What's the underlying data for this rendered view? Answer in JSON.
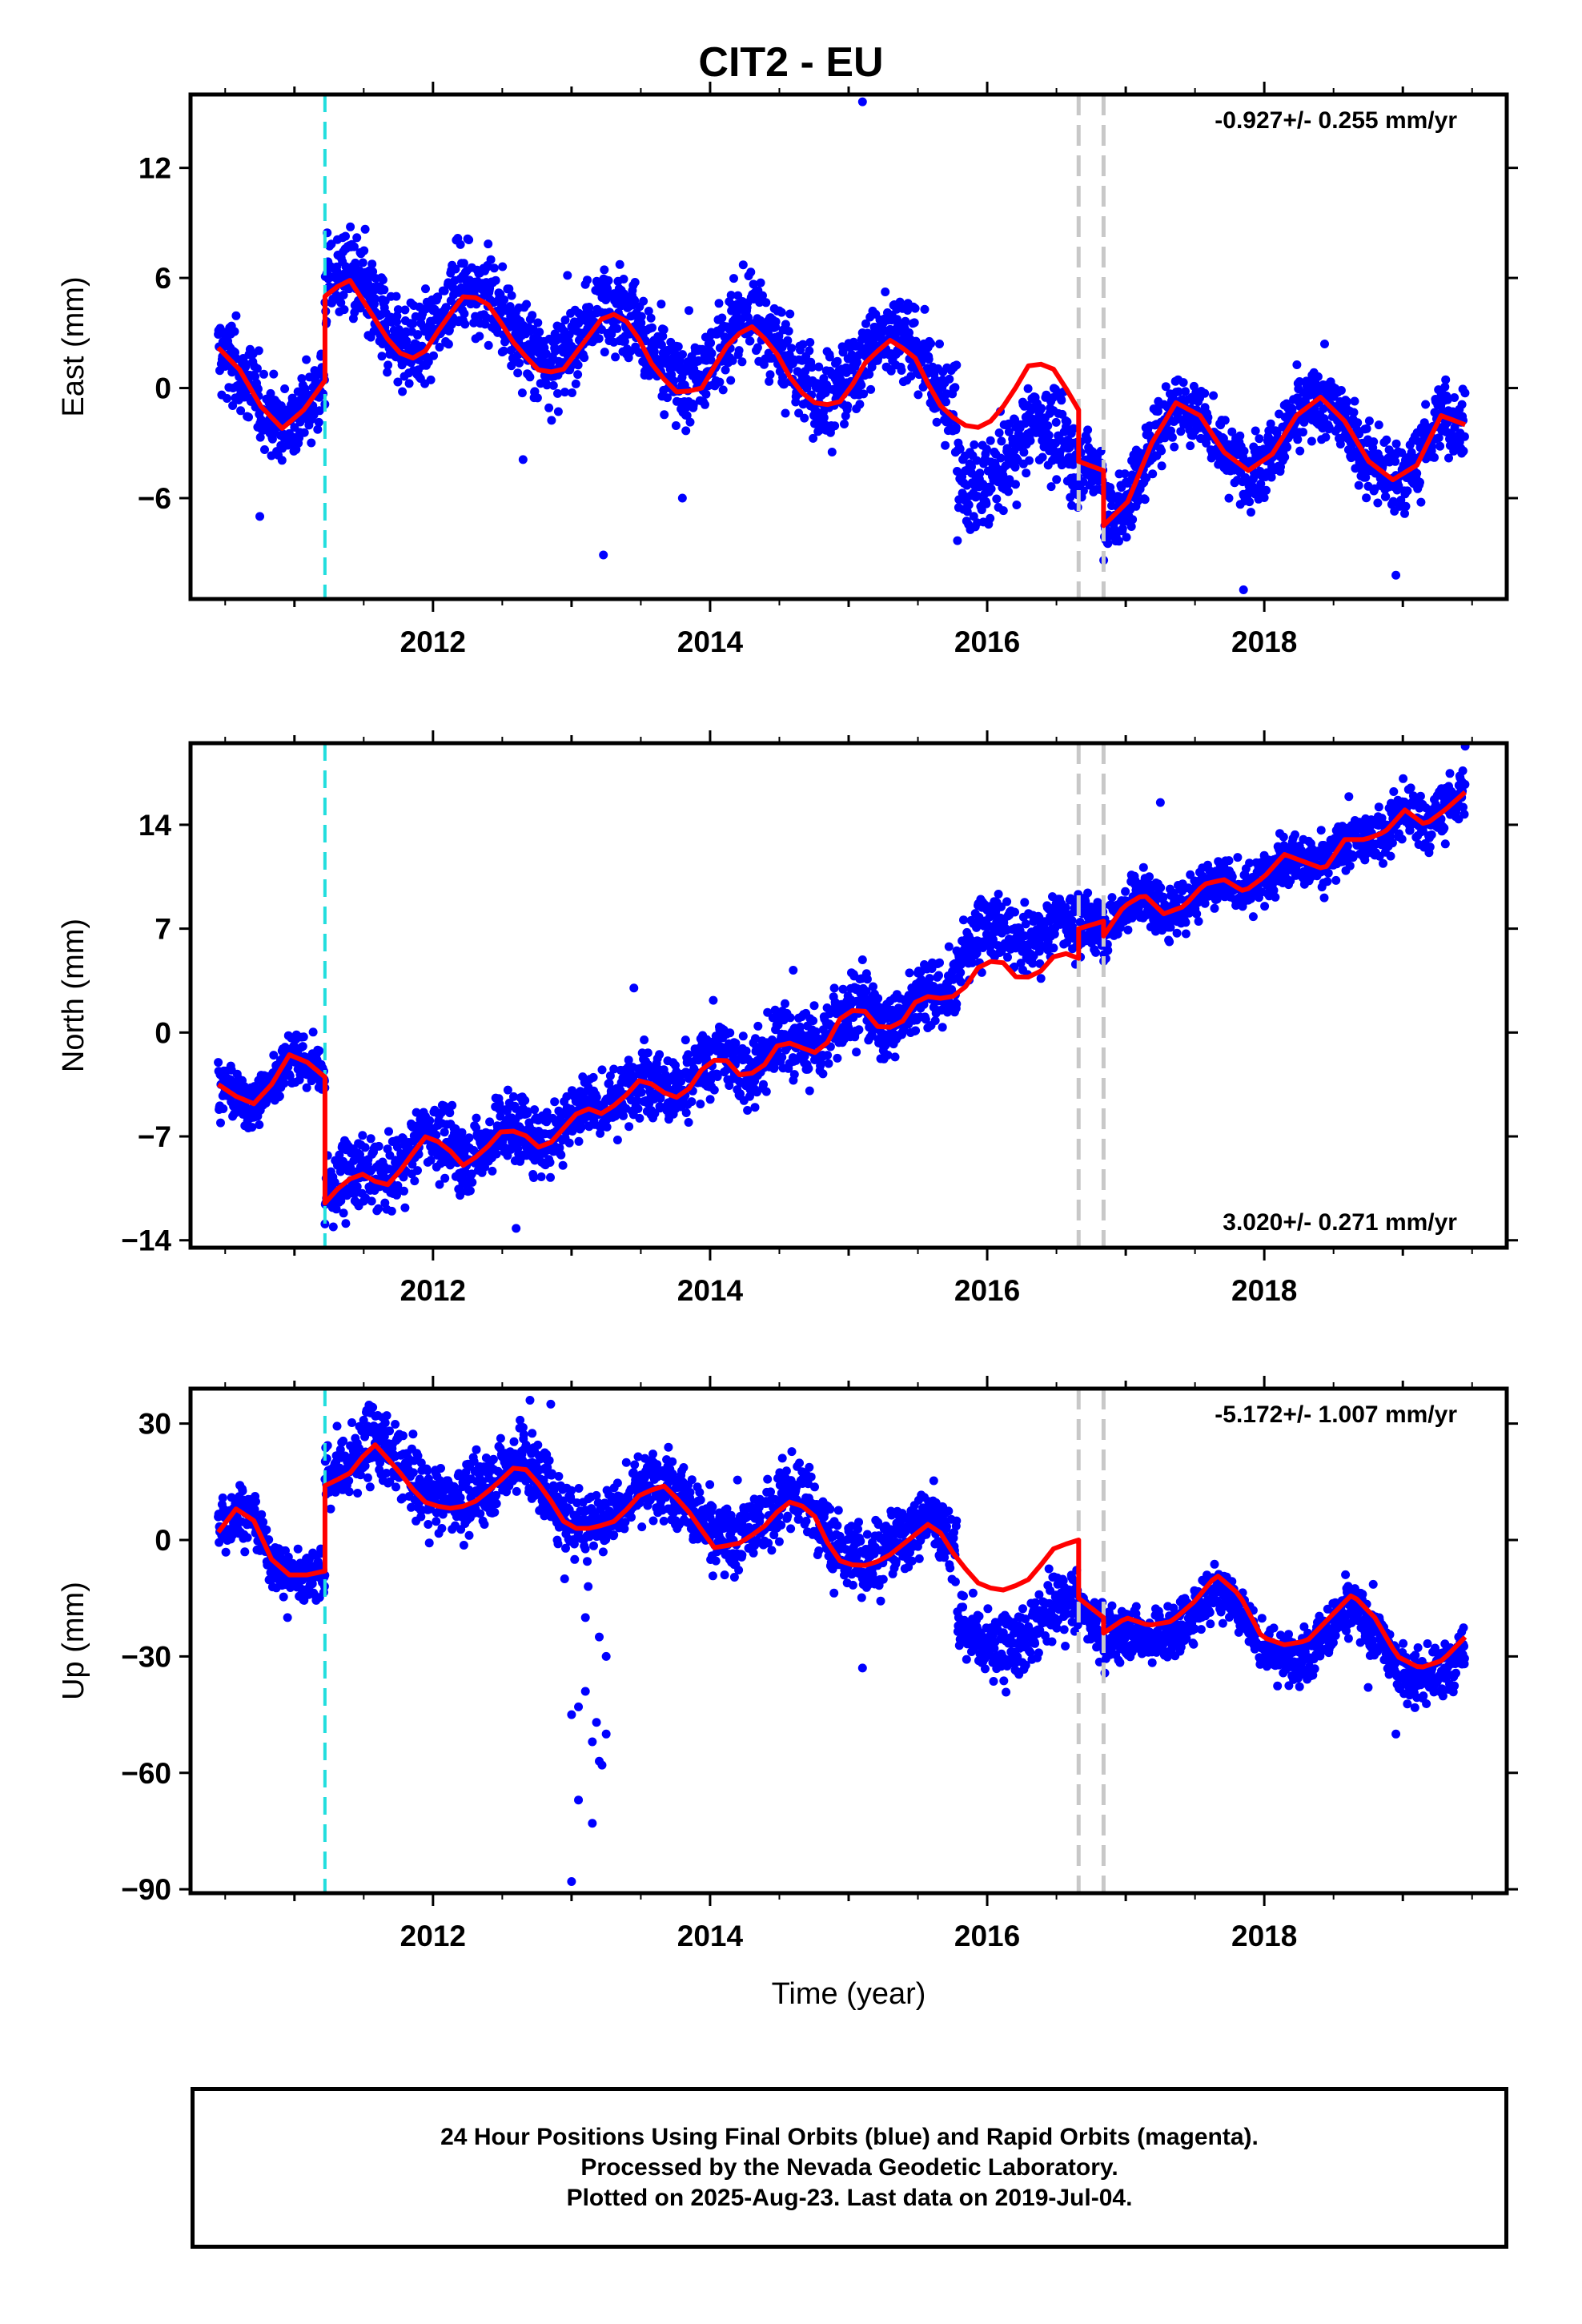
{
  "title": "CIT2 - EU",
  "footer": {
    "line1": "24 Hour Positions Using Final Orbits (blue) and Rapid Orbits (magenta).",
    "line2": "Processed by the Nevada Geodetic Laboratory.",
    "line3": "Plotted on 2025-Aug-23. Last data on 2019-Jul-04."
  },
  "chart_data": [
    {
      "type": "scatter",
      "component": "east",
      "ylabel": "East (mm)",
      "xlabel": "",
      "xlim": [
        2010.25,
        2019.75
      ],
      "ylim": [
        -11.5,
        16
      ],
      "yticks": [
        -6,
        0,
        6,
        12
      ],
      "xticks": [
        2012,
        2014,
        2016,
        2018
      ],
      "rate": "-0.927+/- 0.255 mm/yr",
      "rate_position": "top-right",
      "point_color": "#0000ff",
      "fit_color": "#ff0000",
      "equipment_changes": [
        2016.66,
        2016.84
      ],
      "earthquake_offsets": [
        2011.22
      ],
      "model_segments": [
        {
          "start": 2010.45,
          "end": 2011.22,
          "values": [
            2.2,
            1.0,
            -1.0,
            -2.2,
            -1.2,
            0.4
          ]
        },
        {
          "start": 2011.22,
          "end": 2016.66,
          "values": [
            5.0,
            6.0,
            4.0,
            2.0,
            1.5,
            3.5,
            5.2,
            4.5,
            2.5,
            1.0,
            0.8,
            2.5,
            4.2,
            3.5,
            1.0,
            -0.3,
            0.0,
            2.2,
            3.5,
            2.3,
            0.0,
            -1.0,
            -0.7,
            1.5,
            2.6,
            1.8,
            -0.8,
            -2.0,
            -2.2,
            -0.7,
            1.5,
            1.0,
            -1.2
          ]
        },
        {
          "start": 2016.66,
          "end": 2016.84,
          "values": [
            -4.0,
            -4.5
          ]
        },
        {
          "start": 2016.84,
          "end": 2019.45,
          "values": [
            -7.5,
            -6.2,
            -3.0,
            -0.8,
            -1.5,
            -3.5,
            -4.5,
            -3.6,
            -1.5,
            -0.5,
            -1.8,
            -4.0,
            -5.0,
            -4.2,
            -1.5,
            -2.0
          ]
        }
      ],
      "data_segments": [
        {
          "start": 2010.45,
          "end": 2011.22,
          "offset": 0.0,
          "spread": 1.6
        },
        {
          "start": 2011.22,
          "end": 2015.78,
          "offset": 0.6,
          "spread": 1.7
        },
        {
          "start": 2015.78,
          "end": 2016.66,
          "offset": -3.3,
          "spread": 1.7
        },
        {
          "start": 2016.66,
          "end": 2019.45,
          "offset": 0.0,
          "spread": 1.4
        }
      ],
      "outliers": [
        [
          2015.1,
          15.6
        ],
        [
          2013.23,
          -9.1
        ],
        [
          2013.8,
          -6.0
        ],
        [
          2010.75,
          -7.0
        ],
        [
          2017.85,
          -11.0
        ],
        [
          2018.95,
          -10.2
        ],
        [
          2012.65,
          -3.9
        ]
      ]
    },
    {
      "type": "scatter",
      "component": "north",
      "ylabel": "North (mm)",
      "xlabel": "",
      "xlim": [
        2010.25,
        2019.75
      ],
      "ylim": [
        -14.5,
        19.5
      ],
      "yticks": [
        -14,
        -7,
        0,
        7,
        14
      ],
      "xticks": [
        2012,
        2014,
        2016,
        2018
      ],
      "rate": "3.020+/- 0.271 mm/yr",
      "rate_position": "bottom-right",
      "point_color": "#0000ff",
      "fit_color": "#ff0000",
      "equipment_changes": [
        2016.66,
        2016.84
      ],
      "earthquake_offsets": [
        2011.22
      ],
      "model_segments": [
        {
          "start": 2010.45,
          "end": 2011.22,
          "values": [
            -3.5,
            -4.3,
            -4.8,
            -3.5,
            -1.5,
            -2.0,
            -3.0
          ]
        },
        {
          "start": 2011.22,
          "end": 2016.66,
          "values": [
            -11.5,
            -10.0,
            -9.5,
            -10.5,
            -9.0,
            -7.0,
            -7.5,
            -9.0,
            -8.0,
            -6.5,
            -6.8,
            -8.0,
            -6.5,
            -5.0,
            -5.5,
            -4.5,
            -3.0,
            -4.0,
            -4.5,
            -2.5,
            -1.5,
            -3.0,
            -2.5,
            -0.5,
            -1.0,
            -1.5,
            1.0,
            1.8,
            0.2,
            0.5,
            2.5,
            2.3,
            2.5,
            4.5,
            5.0,
            3.5,
            4.0,
            5.5,
            5.0
          ]
        },
        {
          "start": 2016.66,
          "end": 2016.84,
          "values": [
            7.0,
            7.5
          ]
        },
        {
          "start": 2016.84,
          "end": 2019.45,
          "values": [
            6.5,
            8.5,
            9.3,
            8.0,
            8.5,
            10.0,
            10.3,
            9.5,
            10.5,
            12.0,
            11.5,
            11.0,
            13.0,
            13.0,
            13.5,
            15.0,
            14.0,
            15.0,
            16.2
          ]
        }
      ],
      "data_segments": [
        {
          "start": 2010.45,
          "end": 2011.22,
          "offset": 0.0,
          "spread": 1.3
        },
        {
          "start": 2011.22,
          "end": 2015.78,
          "offset": 0.3,
          "spread": 1.7
        },
        {
          "start": 2015.78,
          "end": 2016.66,
          "offset": 2.3,
          "spread": 1.5
        },
        {
          "start": 2016.66,
          "end": 2019.45,
          "offset": 0.0,
          "spread": 1.3
        }
      ],
      "outliers": [
        [
          2012.6,
          -13.2
        ],
        [
          2013.45,
          3.0
        ],
        [
          2019.45,
          19.3
        ],
        [
          2017.25,
          15.5
        ],
        [
          2015.1,
          4.9
        ],
        [
          2014.6,
          4.2
        ]
      ]
    },
    {
      "type": "scatter",
      "component": "up",
      "ylabel": "Up (mm)",
      "xlabel": "Time (year)",
      "xlim": [
        2010.25,
        2019.75
      ],
      "ylim": [
        -91,
        39
      ],
      "yticks": [
        -90,
        -60,
        -30,
        0,
        30
      ],
      "xticks": [
        2012,
        2014,
        2016,
        2018
      ],
      "rate": "-5.172+/- 1.007 mm/yr",
      "rate_position": "top-right",
      "point_color": "#0000ff",
      "fit_color": "#ff0000",
      "equipment_changes": [
        2016.66,
        2016.84
      ],
      "earthquake_offsets": [
        2011.22
      ],
      "model_segments": [
        {
          "start": 2010.45,
          "end": 2011.22,
          "values": [
            2,
            8,
            5,
            -5,
            -9,
            -9,
            -8
          ]
        },
        {
          "start": 2011.22,
          "end": 2016.66,
          "values": [
            14,
            17,
            25,
            18,
            10,
            8,
            9,
            14,
            20,
            13,
            3,
            3,
            5,
            12,
            14,
            7,
            -2,
            -1,
            3,
            10,
            8,
            -5,
            -7,
            -5,
            0,
            5,
            -5,
            -12,
            -13,
            -10,
            -2,
            0
          ]
        },
        {
          "start": 2016.66,
          "end": 2016.84,
          "values": [
            -15,
            -20
          ]
        },
        {
          "start": 2016.84,
          "end": 2019.45,
          "values": [
            -24,
            -20,
            -22,
            -21,
            -16,
            -9,
            -14,
            -25,
            -27,
            -26,
            -20,
            -14,
            -20,
            -30,
            -33,
            -31,
            -25
          ]
        }
      ],
      "data_segments": [
        {
          "start": 2010.45,
          "end": 2011.22,
          "offset": 0.0,
          "spread": 5.0
        },
        {
          "start": 2011.22,
          "end": 2015.78,
          "offset": 2.0,
          "spread": 6.5
        },
        {
          "start": 2015.78,
          "end": 2016.66,
          "offset": -15.0,
          "spread": 6.0
        },
        {
          "start": 2016.66,
          "end": 2019.45,
          "offset": -3.0,
          "spread": 5.0
        }
      ],
      "outliers": [
        [
          2012.7,
          36
        ],
        [
          2012.85,
          35
        ],
        [
          2013.0,
          -45
        ],
        [
          2013.05,
          -43
        ],
        [
          2013.1,
          -39
        ],
        [
          2013.15,
          -52
        ],
        [
          2013.2,
          -57
        ],
        [
          2013.22,
          -58
        ],
        [
          2013.18,
          -47
        ],
        [
          2013.25,
          -50
        ],
        [
          2013.05,
          -67
        ],
        [
          2013.15,
          -73
        ],
        [
          2013.0,
          -88
        ],
        [
          2013.1,
          -20
        ],
        [
          2013.2,
          -25
        ],
        [
          2013.25,
          -30
        ],
        [
          2012.95,
          -10
        ],
        [
          2013.12,
          -12
        ],
        [
          2018.95,
          -50
        ],
        [
          2015.1,
          -33
        ],
        [
          2010.95,
          -20
        ],
        [
          2018.75,
          -38
        ]
      ]
    }
  ]
}
